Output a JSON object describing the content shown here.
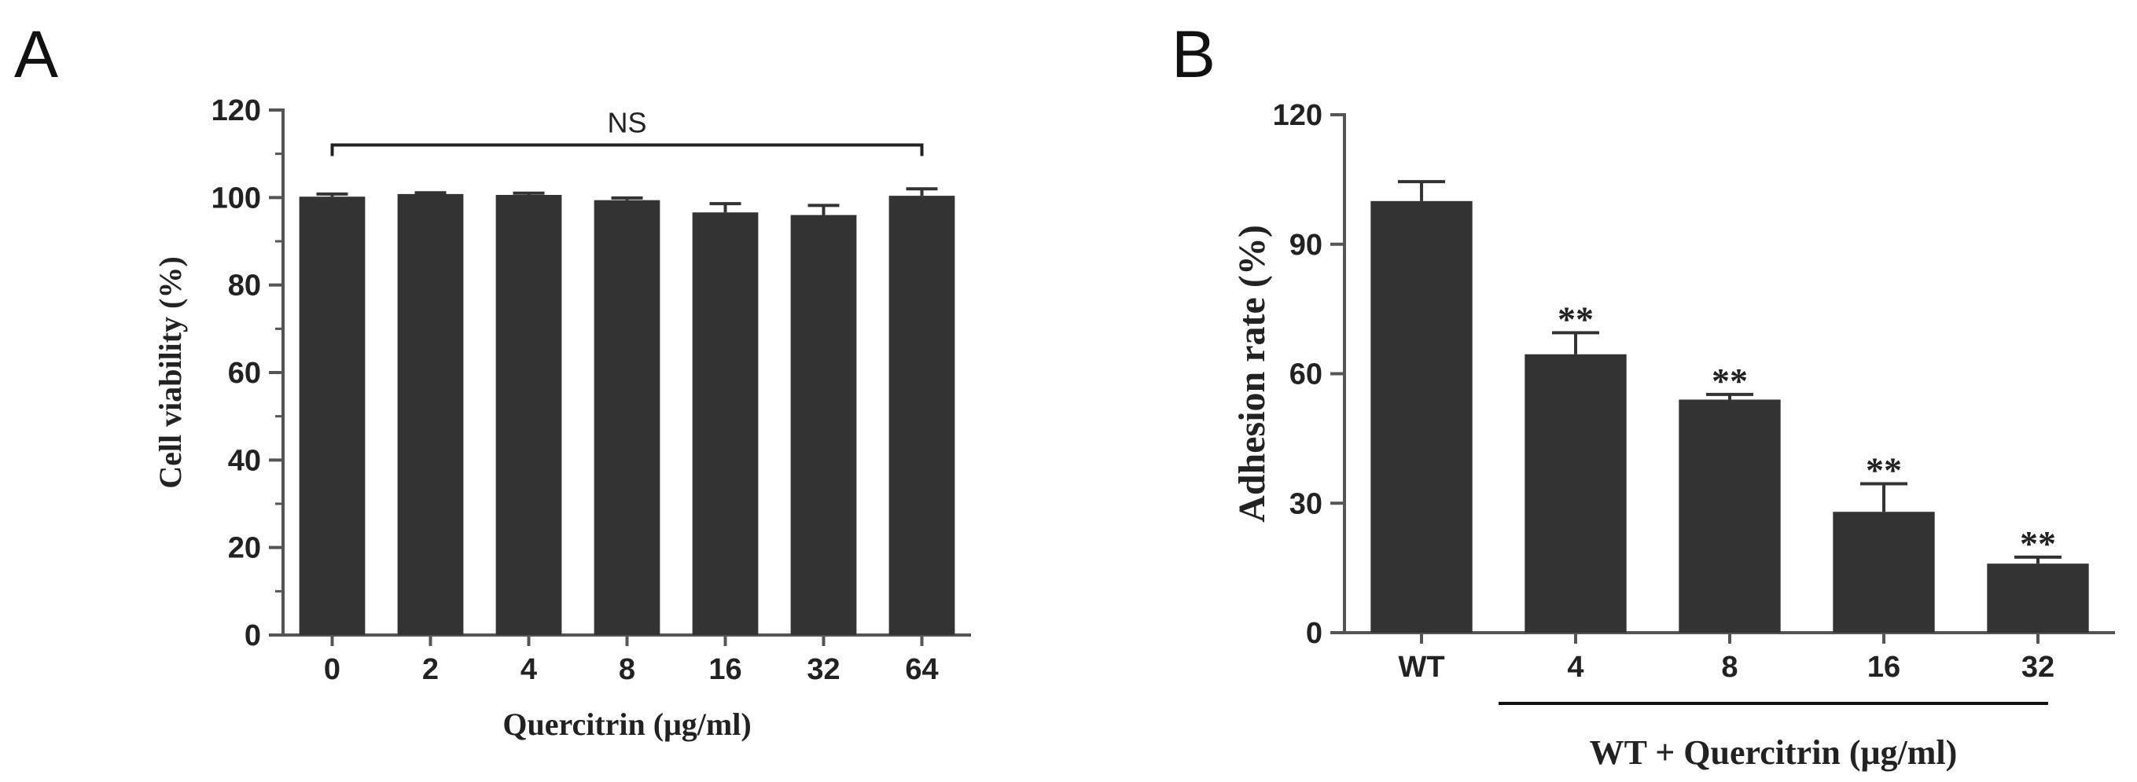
{
  "panels": [
    {
      "letter": "A"
    },
    {
      "letter": "B"
    }
  ],
  "chart_data": [
    {
      "type": "bar",
      "panel": "A",
      "categories": [
        "0",
        "2",
        "4",
        "8",
        "16",
        "32",
        "64"
      ],
      "values": [
        100.2,
        100.8,
        100.6,
        99.4,
        96.6,
        96.0,
        100.4
      ],
      "errors": [
        0.6,
        0.3,
        0.4,
        0.5,
        2.0,
        2.2,
        1.6
      ],
      "xlabel": "Quercitrin (μg/ml)",
      "ylabel": "Cell viability (%)",
      "ylim": [
        0,
        120
      ],
      "yticks": [
        0,
        20,
        40,
        60,
        80,
        100,
        120
      ],
      "bracket_label": "NS",
      "bar_color": "#333333",
      "grid": false
    },
    {
      "type": "bar",
      "panel": "B",
      "categories": [
        "WT",
        "4",
        "8",
        "16",
        "32"
      ],
      "values": [
        100,
        64.5,
        54,
        28,
        16
      ],
      "errors": [
        4.5,
        5,
        1.2,
        6.5,
        1.5
      ],
      "significance": [
        "",
        "**",
        "**",
        "**",
        "**"
      ],
      "xlabel": "WT + Quercitrin (μg/ml)",
      "ylabel": "Adhesion rate (%)",
      "ylim": [
        0,
        120
      ],
      "yticks": [
        0,
        30,
        60,
        90,
        120
      ],
      "bar_color": "#333333",
      "grid": false
    }
  ]
}
